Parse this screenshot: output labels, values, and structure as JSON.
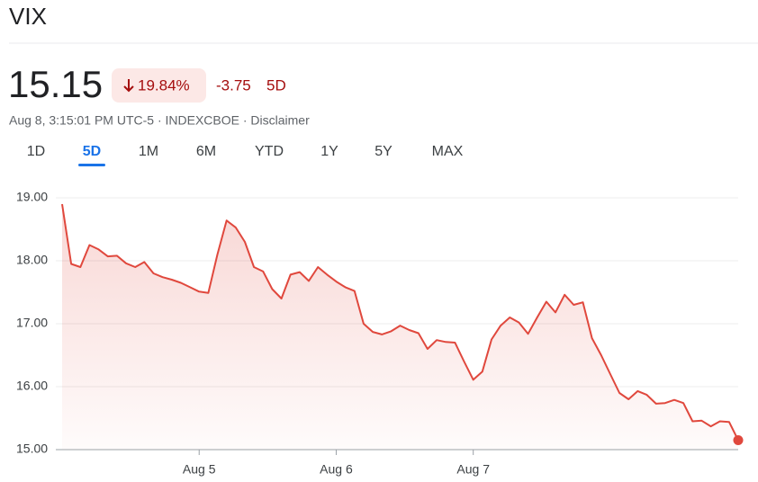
{
  "header": {
    "title": "VIX"
  },
  "quote": {
    "price": "15.15",
    "change_percent": "19.84%",
    "change": "-3.75",
    "period": "5D",
    "meta": "Aug 8, 3:15:01 PM UTC-5 · INDEXCBOE · Disclaimer"
  },
  "tabs": {
    "items": [
      "1D",
      "5D",
      "1M",
      "6M",
      "YTD",
      "1Y",
      "5Y",
      "MAX"
    ],
    "selected": 1
  },
  "chart_data": {
    "type": "line",
    "color": "#e0483d",
    "grid": true,
    "x": [
      0,
      1,
      2,
      3,
      4,
      5,
      6,
      7,
      8,
      9,
      10,
      11,
      12,
      13,
      14,
      15,
      16,
      17,
      18,
      19,
      20,
      21,
      22,
      23,
      24,
      25,
      26,
      27,
      28,
      29,
      30,
      31,
      32,
      33,
      34,
      35,
      36,
      37,
      38,
      39,
      40,
      41,
      42,
      43,
      44,
      45,
      46,
      47,
      48,
      49,
      50,
      51,
      52,
      53,
      54,
      55,
      56,
      57,
      58,
      59,
      60,
      61,
      62,
      63,
      64,
      65,
      66,
      67,
      68,
      69,
      70,
      71,
      72,
      73,
      74
    ],
    "values": [
      18.9,
      17.95,
      17.9,
      18.25,
      18.18,
      18.07,
      18.08,
      17.96,
      17.9,
      17.98,
      17.8,
      17.74,
      17.7,
      17.65,
      17.58,
      17.51,
      17.49,
      18.1,
      18.64,
      18.53,
      18.3,
      17.9,
      17.83,
      17.55,
      17.4,
      17.78,
      17.82,
      17.68,
      17.9,
      17.78,
      17.67,
      17.58,
      17.52,
      17.0,
      16.87,
      16.83,
      16.88,
      16.97,
      16.9,
      16.85,
      16.6,
      16.74,
      16.71,
      16.7,
      16.4,
      16.11,
      16.24,
      16.75,
      16.97,
      17.1,
      17.02,
      16.84,
      17.1,
      17.35,
      17.18,
      17.46,
      17.3,
      17.34,
      16.77,
      16.5,
      16.2,
      15.9,
      15.8,
      15.93,
      15.87,
      15.73,
      15.74,
      15.79,
      15.74,
      15.45,
      15.46,
      15.37,
      15.45,
      15.44,
      15.15
    ],
    "xlim": [
      0,
      74
    ],
    "xticks": [
      {
        "value": 15,
        "label": "Aug 5"
      },
      {
        "value": 30,
        "label": "Aug 6"
      },
      {
        "value": 45,
        "label": "Aug 7"
      }
    ],
    "ylim": [
      15,
      19
    ],
    "yticks": [
      {
        "value": 15,
        "label": "15.00"
      },
      {
        "value": 16,
        "label": "16.00"
      },
      {
        "value": 17,
        "label": "17.00"
      },
      {
        "value": 18,
        "label": "18.00"
      },
      {
        "value": 19,
        "label": "19.00"
      }
    ]
  }
}
